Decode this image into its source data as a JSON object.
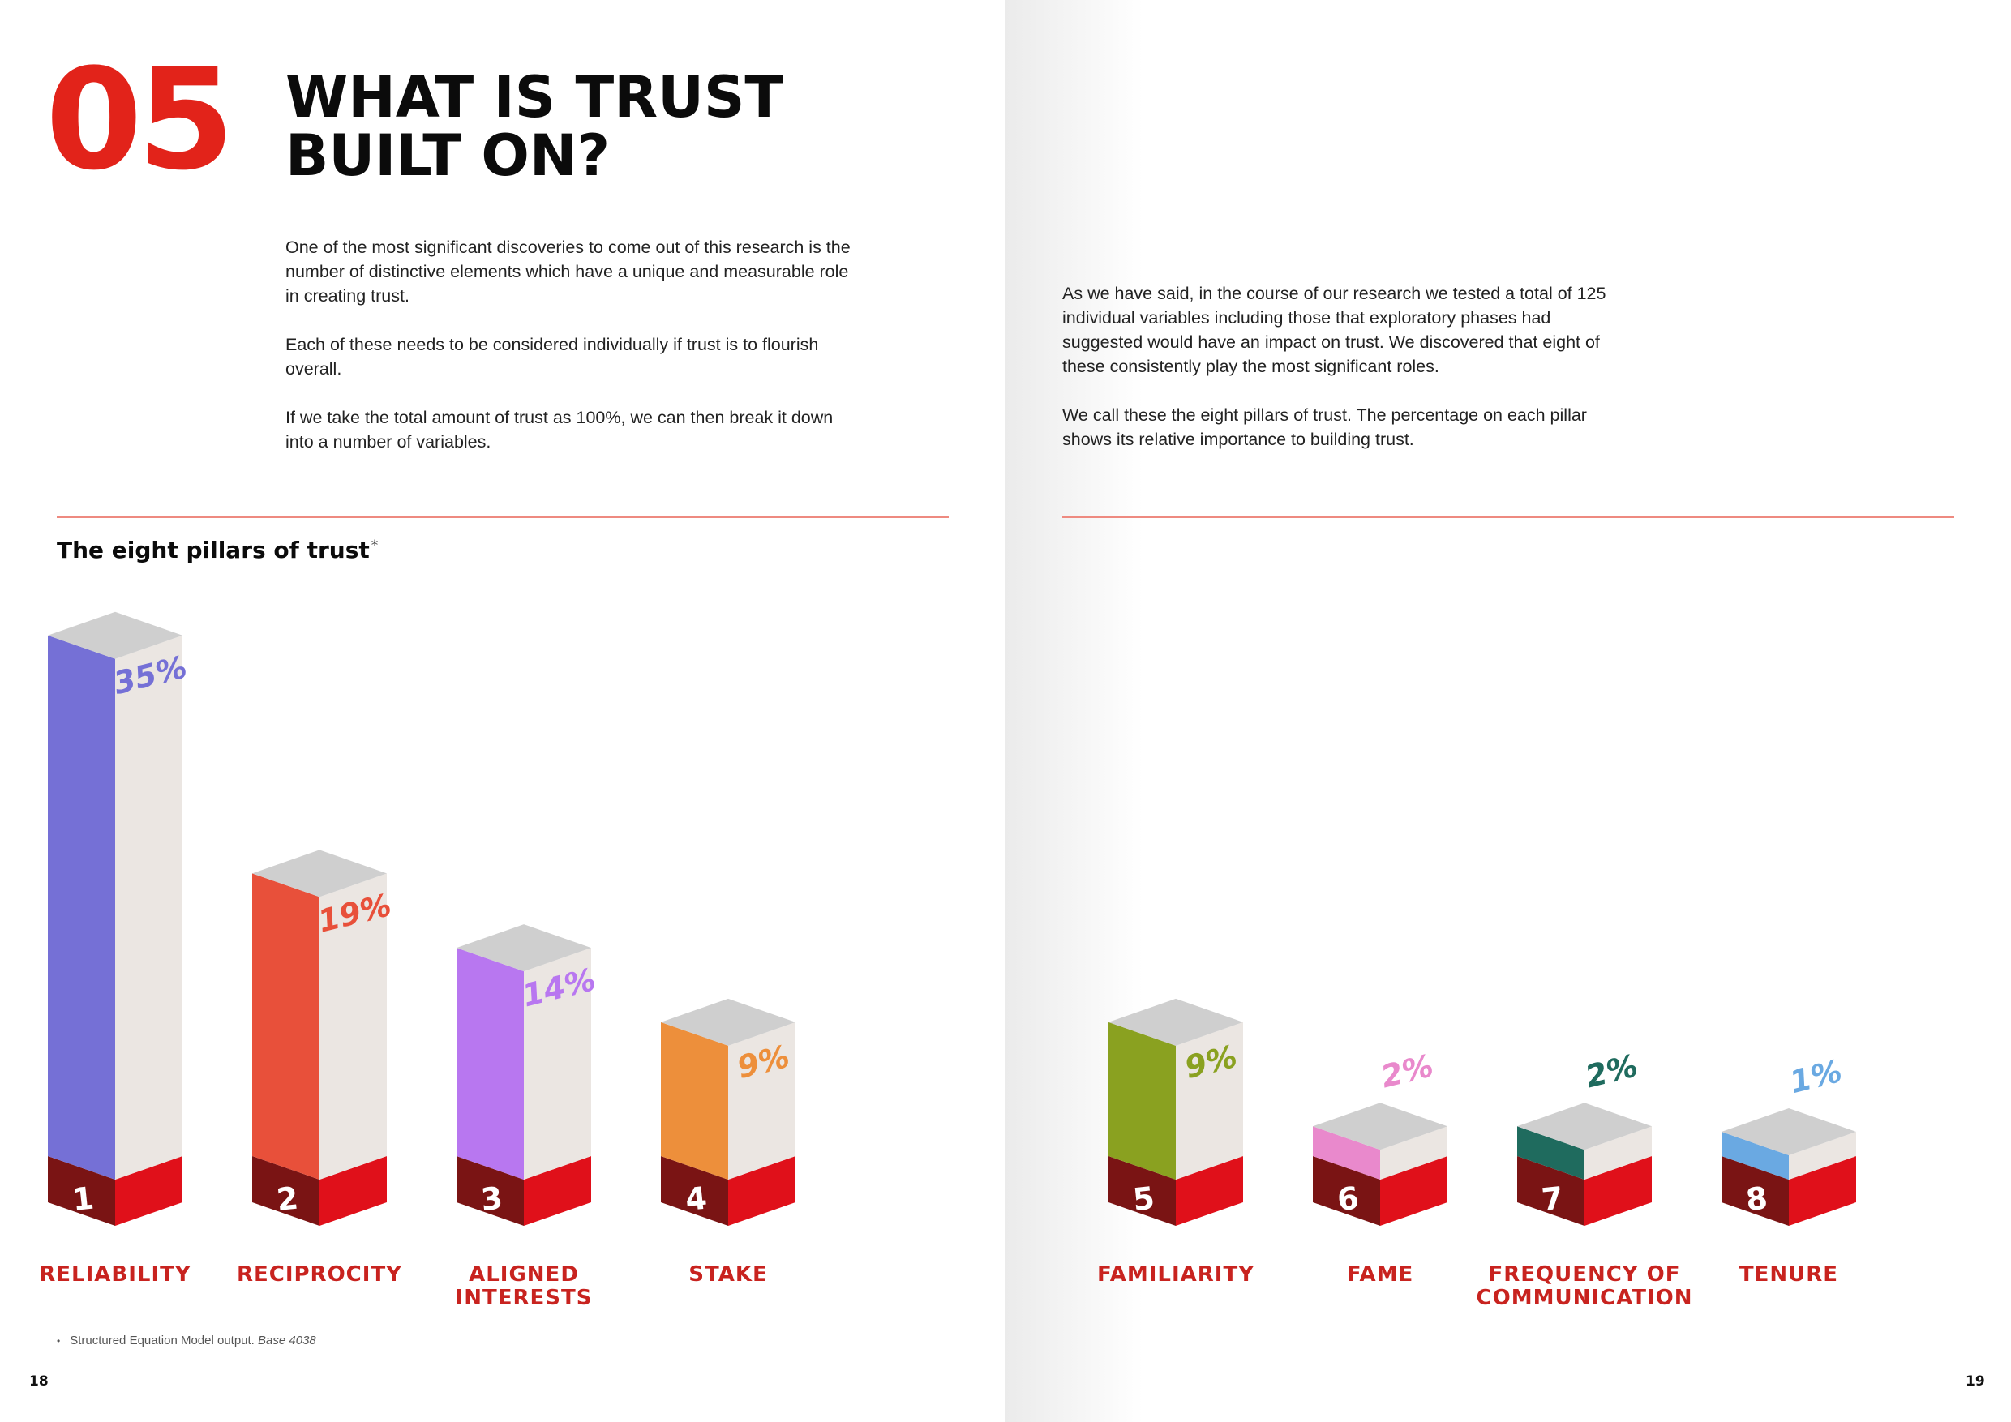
{
  "section": {
    "number": "05",
    "title_lines": [
      "WHAT IS TRUST",
      "BUILT ON?"
    ]
  },
  "left_text": {
    "p1": "One of the most significant discoveries to come out of this research is the number of distinctive elements which have a unique and measurable role in creating trust.",
    "p2": "Each of these needs to be considered individually if trust is to flourish overall.",
    "p3": "If we take the total amount of trust as 100%, we can then break it down into a number of variables."
  },
  "right_text": {
    "p1": "As we have said, in the course of our research we tested a total of 125 individual variables including those that exploratory phases had suggested would have an impact on trust. We discovered that eight of these consistently play the most significant roles.",
    "p2": "We call these the eight pillars of trust. The percentage on each pillar shows its relative importance to building trust."
  },
  "chart_title": "The eight pillars of trust",
  "chart_title_marker": "*",
  "footnote": {
    "bullet": "•",
    "text": "Structured Equation Model output.",
    "base": "Base 4038"
  },
  "page_numbers": {
    "left": "18",
    "right": "19"
  },
  "chart_data": {
    "type": "bar",
    "title": "The eight pillars of trust",
    "unit": "%",
    "categories": [
      "RELIABILITY",
      "RECIPROCITY",
      "ALIGNED INTERESTS",
      "STAKE",
      "FAMILIARITY",
      "FAME",
      "FREQUENCY OF COMMUNICATION",
      "TENURE"
    ],
    "label_lines": [
      [
        "RELIABILITY"
      ],
      [
        "RECIPROCITY"
      ],
      [
        "ALIGNED",
        "INTERESTS"
      ],
      [
        "STAKE"
      ],
      [
        "FAMILIARITY"
      ],
      [
        "FAME"
      ],
      [
        "FREQUENCY OF",
        "COMMUNICATION"
      ],
      [
        "TENURE"
      ]
    ],
    "ranks": [
      "1",
      "2",
      "3",
      "4",
      "5",
      "6",
      "7",
      "8"
    ],
    "values": [
      35,
      19,
      14,
      9,
      9,
      2,
      2,
      1
    ],
    "value_labels": [
      "35%",
      "19%",
      "14%",
      "9%",
      "9%",
      "2%",
      "2%",
      "1%"
    ],
    "colors": [
      "#7570d6",
      "#e8503a",
      "#b877f0",
      "#ed8f3b",
      "#8aa120",
      "#e989cc",
      "#1f6b5e",
      "#6aa9e2"
    ],
    "label_color": "#c8231f",
    "base_colors": {
      "front": "#7a1414",
      "side": "#e0101a"
    }
  }
}
